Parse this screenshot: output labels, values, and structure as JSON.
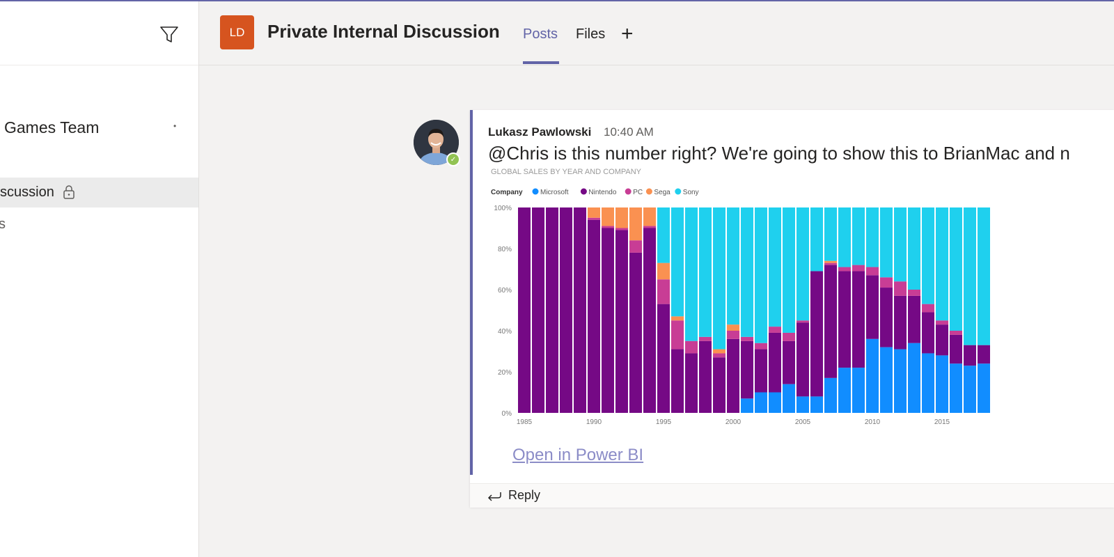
{
  "sidebar": {
    "team_name": "Games Team",
    "active_channel": "scussion",
    "other_channel": "s"
  },
  "header": {
    "avatar_initials": "LD",
    "channel_title": "Private Internal Discussion",
    "tabs": [
      {
        "label": "Posts"
      },
      {
        "label": "Files"
      }
    ],
    "add_tab_glyph": "+"
  },
  "message": {
    "sender": "Lukasz Pawlowski",
    "time": "10:40 AM",
    "text": "@Chris is this number right? We're going to show this to BrianMac and n",
    "link_text": "Open in Power BI",
    "reply_label": "Reply"
  },
  "chart_data": {
    "type": "bar",
    "stacked": "percent",
    "title": "GLOBAL SALES BY YEAR AND COMPANY",
    "legend_title": "Company",
    "legend_position": "top-left",
    "x": [
      1985,
      1986,
      1987,
      1988,
      1989,
      1990,
      1991,
      1992,
      1993,
      1994,
      1995,
      1996,
      1997,
      1998,
      1999,
      2000,
      2001,
      2002,
      2003,
      2004,
      2005,
      2006,
      2007,
      2008,
      2009,
      2010,
      2011,
      2012,
      2013,
      2014,
      2015,
      2016,
      2017,
      2018
    ],
    "x_tick_labels": [
      "1985",
      "1990",
      "1995",
      "2000",
      "2005",
      "2010",
      "2015"
    ],
    "y_tick_labels": [
      "0%",
      "20%",
      "40%",
      "60%",
      "80%",
      "100%"
    ],
    "ylim": [
      0,
      100
    ],
    "series": [
      {
        "name": "Microsoft",
        "color": "#118dff",
        "values": [
          0,
          0,
          0,
          0,
          0,
          0,
          0,
          0,
          0,
          0,
          0,
          0,
          0,
          0,
          0,
          0,
          7,
          10,
          10,
          14,
          8,
          8,
          17,
          22,
          22,
          36,
          32,
          31,
          34,
          29,
          28,
          24,
          23,
          24
        ]
      },
      {
        "name": "Nintendo",
        "color": "#750985",
        "values": [
          100,
          100,
          100,
          100,
          100,
          94,
          90,
          89,
          78,
          90,
          53,
          31,
          29,
          35,
          27,
          36,
          28,
          21,
          29,
          21,
          36,
          61,
          55,
          47,
          47,
          31,
          29,
          26,
          23,
          20,
          15,
          14,
          10,
          9
        ]
      },
      {
        "name": "PC",
        "color": "#c83d95",
        "values": [
          0,
          0,
          0,
          0,
          0,
          1,
          1,
          1,
          6,
          1,
          12,
          14,
          6,
          2,
          2,
          4,
          2,
          3,
          3,
          4,
          1,
          0,
          1,
          2,
          3,
          4,
          5,
          7,
          3,
          4,
          2,
          2,
          0,
          0
        ]
      },
      {
        "name": "Sega",
        "color": "#fa9151",
        "values": [
          0,
          0,
          0,
          0,
          0,
          5,
          9,
          10,
          16,
          9,
          8,
          2,
          0,
          0,
          2,
          3,
          0,
          0,
          0,
          0,
          0,
          0,
          1,
          0,
          0,
          0,
          0,
          0,
          0,
          0,
          0,
          0,
          0,
          0
        ]
      },
      {
        "name": "Sony",
        "color": "#1fd0ee",
        "values": [
          0,
          0,
          0,
          0,
          0,
          0,
          0,
          0,
          0,
          0,
          27,
          53,
          65,
          63,
          69,
          57,
          63,
          66,
          58,
          61,
          55,
          31,
          26,
          29,
          28,
          29,
          34,
          36,
          40,
          47,
          55,
          60,
          67,
          67
        ]
      }
    ]
  }
}
